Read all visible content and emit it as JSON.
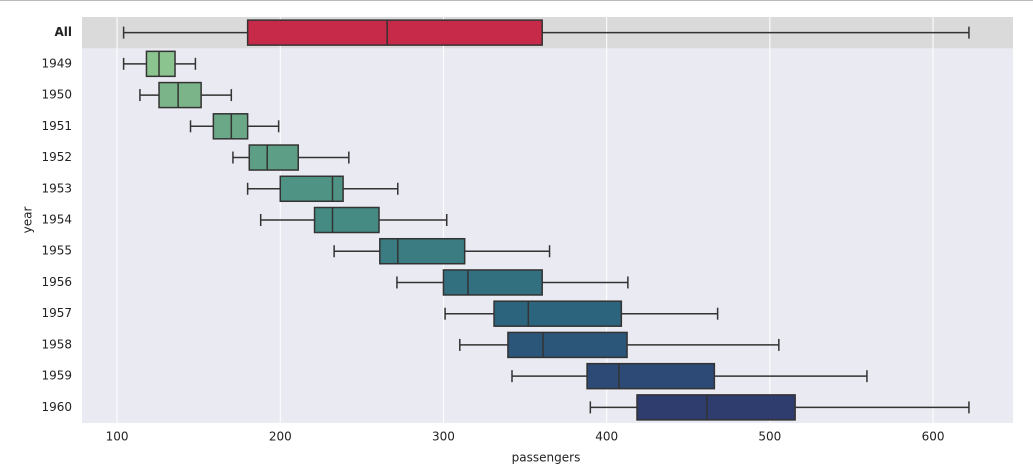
{
  "chart_data": {
    "type": "boxplot",
    "orientation": "horizontal",
    "x_label": "passengers",
    "y_label": "year",
    "categories": [
      "All",
      "1949",
      "1950",
      "1951",
      "1952",
      "1953",
      "1954",
      "1955",
      "1956",
      "1957",
      "1958",
      "1959",
      "1960"
    ],
    "highlight": 0,
    "highlight_color": "#dadada",
    "background": "#eaeaf2",
    "grid": true,
    "stats": {
      "min": [
        104,
        104,
        114,
        145,
        171,
        180,
        188,
        233,
        271.5,
        301,
        310,
        342,
        390
      ],
      "q1": [
        180,
        118,
        125.7,
        159,
        181,
        200,
        221,
        261,
        300,
        331,
        339.5,
        388,
        418.6
      ],
      "median": [
        265.5,
        125.7,
        137.4,
        170,
        192,
        232,
        232,
        272,
        315,
        352,
        361,
        407.5,
        461.5
      ],
      "q3": [
        360.5,
        135.5,
        151.5,
        180,
        211,
        238.5,
        260.5,
        313,
        360.5,
        409,
        412.5,
        466,
        515.5
      ],
      "max": [
        622,
        148,
        170,
        199,
        242,
        272,
        302,
        365,
        413,
        468,
        505.5,
        559.5,
        622
      ]
    },
    "colors": [
      "#c62a48",
      "#8cc48f",
      "#7cb48a",
      "#6aa887",
      "#5c9f86",
      "#4f9384",
      "#458a83",
      "#3a7c82",
      "#327080",
      "#2c647e",
      "#2b567a",
      "#2d4a76",
      "#2f3d6e"
    ],
    "xlim": [
      78.5,
      649
    ],
    "xticks": [
      100,
      200,
      300,
      400,
      500,
      600
    ]
  }
}
